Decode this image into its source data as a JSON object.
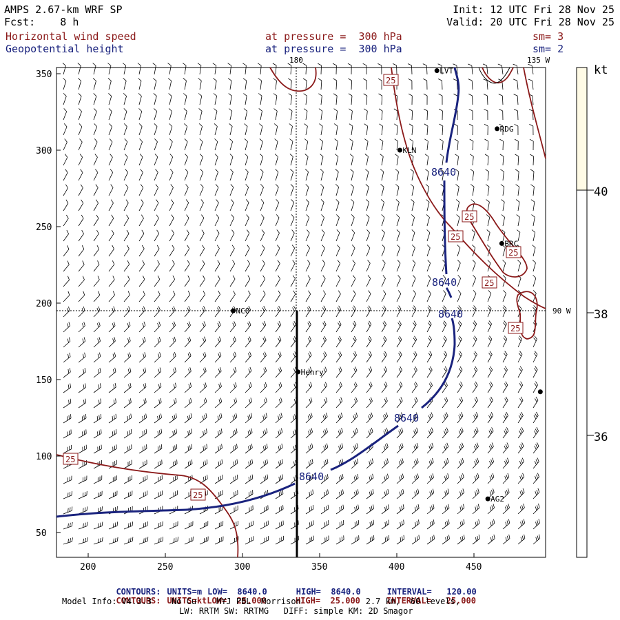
{
  "header": {
    "model": "AMPS 2.67-km WRF SP",
    "fcst": "Fcst:    8 h",
    "init": "Init: 12 UTC Fri 28 Nov 25",
    "valid": "Valid: 20 UTC Fri 28 Nov 25",
    "field1": "Horizontal wind speed",
    "field2": "Geopotential height",
    "pressure1": "at pressure =  300 hPa",
    "pressure2": "at pressure =  300 hPa",
    "sm1": "sm= 3",
    "sm2": "sm= 2"
  },
  "map": {
    "meridian_180": "180",
    "meridian_135w": "135 W",
    "meridian_90w": "90 W",
    "x_ticks": [
      "200",
      "250",
      "300",
      "350",
      "400",
      "450"
    ],
    "y_ticks": [
      "50",
      "100",
      "150",
      "200",
      "250",
      "300",
      "350"
    ],
    "stations": [
      {
        "name": "LVT",
        "x": 426,
        "y": 352
      },
      {
        "name": "RDG",
        "x": 465,
        "y": 314
      },
      {
        "name": "KLN",
        "x": 402,
        "y": 300
      },
      {
        "name": "BRC",
        "x": 468,
        "y": 239
      },
      {
        "name": "NCO",
        "x": 294,
        "y": 195
      },
      {
        "name": "Henry",
        "x": 336,
        "y": 155
      },
      {
        "name": "AG2",
        "x": 459,
        "y": 72
      },
      {
        "name": "",
        "x": 493,
        "y": 142
      }
    ],
    "height_label": "8640",
    "speed_label": "25"
  },
  "colorbar": {
    "unit": "kt",
    "labels": [
      "40",
      "38",
      "36"
    ]
  },
  "footer": {
    "c1_label": "CONTOURS:",
    "c1_units": "UNITS=m",
    "c1_low": "LOW=  8640.0",
    "c1_high": "HIGH=  8640.0",
    "c1_int": "INTERVAL=   120.00",
    "c2_label": "CONTOURS:",
    "c2_units": "UNITS=kt",
    "c2_low": "LOW=  25.000",
    "c2_high": "HIGH=  25.000",
    "c2_int": "INTERVAL=   25.000",
    "info1": "Model Info: V4.3.3    No Cu    MYJ PBL  Morrison             2.7 km,  60 levels,",
    "info2": "LW: RRTM SW: RRTMG   DIFF: simple KM: 2D Smagor"
  },
  "colors": {
    "height": "#1a237e",
    "speed": "#8b1a1a",
    "colorbar_top": "#fffbe6"
  }
}
